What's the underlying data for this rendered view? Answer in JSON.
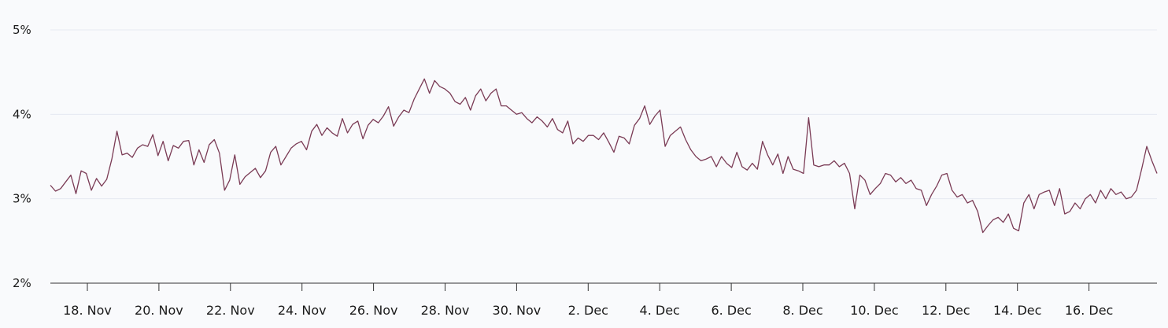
{
  "chart_data": {
    "type": "line",
    "title": "",
    "xlabel": "",
    "ylabel": "",
    "x_start": "17 Nov",
    "x_end": "17 Dec",
    "ylim": [
      2,
      5
    ],
    "yticks": [
      2,
      3,
      4,
      5
    ],
    "ytick_labels": [
      "2%",
      "3%",
      "4%",
      "5%"
    ],
    "xticks": [
      {
        "label": "18. Nov",
        "x": "18 Nov"
      },
      {
        "label": "20. Nov",
        "x": "20 Nov"
      },
      {
        "label": "22. Nov",
        "x": "22 Nov"
      },
      {
        "label": "24. Nov",
        "x": "24 Nov"
      },
      {
        "label": "26. Nov",
        "x": "26 Nov"
      },
      {
        "label": "28. Nov",
        "x": "28 Nov"
      },
      {
        "label": "30. Nov",
        "x": "30 Nov"
      },
      {
        "label": "2. Dec",
        "x": "2 Dec"
      },
      {
        "label": "4. Dec",
        "x": "4 Dec"
      },
      {
        "label": "6. Dec",
        "x": "6 Dec"
      },
      {
        "label": "8. Dec",
        "x": "8 Dec"
      },
      {
        "label": "10. Dec",
        "x": "10 Dec"
      },
      {
        "label": "12. Dec",
        "x": "12 Dec"
      },
      {
        "label": "14. Dec",
        "x": "14 Dec"
      },
      {
        "label": "16. Dec",
        "x": "16 Dec"
      }
    ],
    "grid": true,
    "legend": "none",
    "line_color": "#7a3b55",
    "grid_color": "#e6e9f2",
    "axis_color": "#333333",
    "series": [
      {
        "values": [
          [
            3.16,
            3.09,
            3.12,
            3.2,
            3.28,
            3.06,
            3.33,
            3.3,
            3.1,
            3.24,
            3.15,
            3.23,
            3.47,
            3.8,
            3.52,
            3.54,
            3.49,
            3.6,
            3.64,
            3.62,
            3.76,
            3.51,
            3.68,
            3.45,
            3.63,
            3.6,
            3.68,
            3.69,
            3.4,
            3.58,
            3.43,
            3.64,
            3.7,
            3.54
          ],
          [
            3.1,
            3.22,
            3.52,
            3.17,
            3.26,
            3.31,
            3.36,
            3.25,
            3.33,
            3.55,
            3.62,
            3.4,
            3.5,
            3.6,
            3.65,
            3.68,
            3.58,
            3.8,
            3.88,
            3.75,
            3.84,
            3.78,
            3.74,
            3.95,
            3.78,
            3.88,
            3.92,
            3.71,
            3.87,
            3.94,
            3.9,
            3.98,
            4.09,
            3.86,
            3.97,
            4.05,
            4.02,
            4.18,
            4.3,
            4.42,
            4.25,
            4.4
          ],
          [
            4.33,
            4.3,
            4.25,
            4.15,
            4.12,
            4.2,
            4.05,
            4.22,
            4.3,
            4.16,
            4.25,
            4.3,
            4.1,
            4.1,
            4.05,
            4.0,
            4.02,
            3.95,
            3.9,
            3.97,
            3.92,
            3.85,
            3.95,
            3.82,
            3.78,
            3.92,
            3.65,
            3.72,
            3.68,
            3.75,
            3.75,
            3.7,
            3.78,
            3.67,
            3.55,
            3.74,
            3.72,
            3.65
          ],
          [
            3.87,
            3.95,
            4.1,
            3.88,
            3.98,
            4.05,
            3.62,
            3.75,
            3.8,
            3.85,
            3.7,
            3.58,
            3.5,
            3.45,
            3.47,
            3.5,
            3.38,
            3.5,
            3.42,
            3.37,
            3.55,
            3.38,
            3.34,
            3.42,
            3.35,
            3.68,
            3.52,
            3.4,
            3.53,
            3.3,
            3.5,
            3.35,
            3.33,
            3.3,
            3.96,
            3.4,
            3.38,
            3.4,
            3.4,
            3.45,
            3.38
          ]
        ],
        "flat_note": ""
      }
    ],
    "y_values": [
      3.16,
      3.09,
      3.12,
      3.2,
      3.28,
      3.06,
      3.33,
      3.3,
      3.1,
      3.24,
      3.15,
      3.23,
      3.47,
      3.8,
      3.52,
      3.54,
      3.49,
      3.6,
      3.64,
      3.62,
      3.76,
      3.51,
      3.68,
      3.45,
      3.63,
      3.6,
      3.68,
      3.69,
      3.4,
      3.58,
      3.43,
      3.64,
      3.7,
      3.54,
      3.1,
      3.22,
      3.52,
      3.17,
      3.26,
      3.31,
      3.36,
      3.25,
      3.33,
      3.55,
      3.62,
      3.4,
      3.5,
      3.6,
      3.65,
      3.68,
      3.58,
      3.8,
      3.88,
      3.75,
      3.84,
      3.78,
      3.74,
      3.95,
      3.78,
      3.88,
      3.92,
      3.71,
      3.87,
      3.94,
      3.9,
      3.98,
      4.09,
      3.86,
      3.97,
      4.05,
      4.02,
      4.18,
      4.3,
      4.42,
      4.25,
      4.4,
      4.33,
      4.3,
      4.25,
      4.15,
      4.12,
      4.2,
      4.05,
      4.22,
      4.3,
      4.16,
      4.25,
      4.3,
      4.1,
      4.1,
      4.05,
      4.0,
      4.02,
      3.95,
      3.9,
      3.97,
      3.92,
      3.85,
      3.95,
      3.82,
      3.78,
      3.92,
      3.65,
      3.72,
      3.68,
      3.75,
      3.75,
      3.7,
      3.78,
      3.67,
      3.55,
      3.74,
      3.72,
      3.65,
      3.87,
      3.95,
      4.1,
      3.88,
      3.98,
      4.05,
      3.62,
      3.75,
      3.8,
      3.85,
      3.7,
      3.58,
      3.5,
      3.45,
      3.47,
      3.5,
      3.38,
      3.5,
      3.42,
      3.37,
      3.55,
      3.38,
      3.34,
      3.42,
      3.35,
      3.68,
      3.52,
      3.4,
      3.53,
      3.3,
      3.5,
      3.35,
      3.33,
      3.3,
      3.96,
      3.4,
      3.38,
      3.4,
      3.4,
      3.45,
      3.38,
      3.42,
      3.3,
      2.88,
      3.28,
      3.22,
      3.05,
      3.12,
      3.18,
      3.3,
      3.28,
      3.2,
      3.25,
      3.18,
      3.22,
      3.12,
      3.1,
      2.92,
      3.05,
      3.15,
      3.28,
      3.3,
      3.1,
      3.02,
      3.05,
      2.95,
      2.98,
      2.85,
      2.6,
      2.68,
      2.75,
      2.78,
      2.72,
      2.82,
      2.65,
      2.62,
      2.95,
      3.05,
      2.88,
      3.05,
      3.08,
      3.1,
      2.92,
      3.12,
      2.82,
      2.85,
      2.95,
      2.88,
      3.0,
      3.05,
      2.95,
      3.1,
      3.0,
      3.12,
      3.05,
      3.08,
      3.0,
      3.02,
      3.1,
      3.35,
      3.62,
      3.45,
      3.3
    ]
  }
}
